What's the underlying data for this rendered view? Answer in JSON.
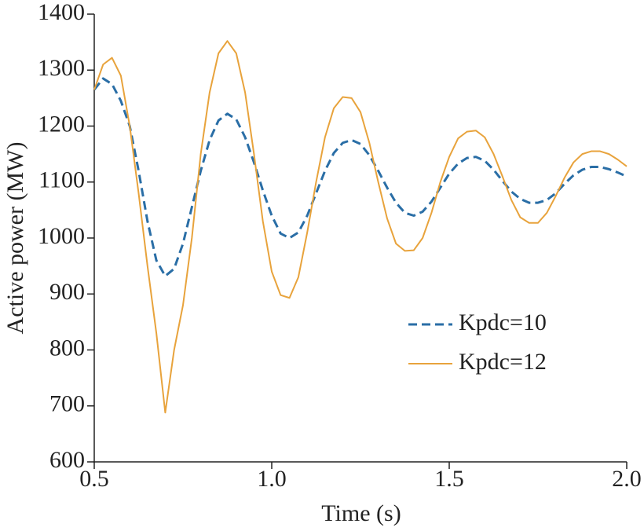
{
  "chart_data": {
    "type": "line",
    "xlabel": "Time (s)",
    "ylabel": "Active power (MW)",
    "x": [
      0.5,
      0.525,
      0.55,
      0.575,
      0.6,
      0.625,
      0.65,
      0.675,
      0.7,
      0.725,
      0.75,
      0.775,
      0.8,
      0.825,
      0.85,
      0.875,
      0.9,
      0.925,
      0.95,
      0.975,
      1.0,
      1.025,
      1.05,
      1.075,
      1.1,
      1.125,
      1.15,
      1.175,
      1.2,
      1.225,
      1.25,
      1.275,
      1.3,
      1.325,
      1.35,
      1.375,
      1.4,
      1.425,
      1.45,
      1.475,
      1.5,
      1.525,
      1.55,
      1.575,
      1.6,
      1.625,
      1.65,
      1.675,
      1.7,
      1.725,
      1.75,
      1.775,
      1.8,
      1.825,
      1.85,
      1.875,
      1.9,
      1.925,
      1.95,
      1.975,
      2.0
    ],
    "series": [
      {
        "name": "Kpdc=10",
        "color": "#2a6ea6",
        "dash": true,
        "values": [
          1265,
          1285,
          1275,
          1245,
          1200,
          1120,
          1030,
          960,
          932,
          945,
          990,
          1055,
          1120,
          1175,
          1210,
          1222,
          1212,
          1180,
          1135,
          1085,
          1040,
          1008,
          1000,
          1010,
          1040,
          1080,
          1120,
          1152,
          1170,
          1175,
          1168,
          1148,
          1120,
          1090,
          1063,
          1045,
          1040,
          1047,
          1065,
          1090,
          1115,
          1133,
          1143,
          1145,
          1138,
          1122,
          1102,
          1083,
          1070,
          1063,
          1063,
          1068,
          1080,
          1097,
          1112,
          1122,
          1127,
          1127,
          1123,
          1117,
          1110
        ]
      },
      {
        "name": "Kpdc=12",
        "color": "#e8a33c",
        "dash": false,
        "values": [
          1265,
          1310,
          1322,
          1290,
          1200,
          1080,
          950,
          830,
          688,
          800,
          880,
          1000,
          1150,
          1260,
          1330,
          1352,
          1330,
          1260,
          1150,
          1030,
          940,
          898,
          893,
          930,
          1010,
          1100,
          1180,
          1232,
          1252,
          1250,
          1225,
          1170,
          1100,
          1035,
          990,
          977,
          978,
          1000,
          1045,
          1100,
          1145,
          1178,
          1190,
          1192,
          1180,
          1150,
          1110,
          1068,
          1037,
          1027,
          1027,
          1045,
          1075,
          1108,
          1135,
          1150,
          1155,
          1155,
          1150,
          1140,
          1128
        ]
      }
    ],
    "xlim": [
      0.5,
      2.0
    ],
    "xticks": [
      0.5,
      {
        "value": 1,
        "label": "1.0"
      },
      1.5,
      {
        "value": 2,
        "label": "2.0"
      }
    ],
    "ylim": [
      600,
      1400
    ],
    "yticks": [
      600,
      700,
      800,
      900,
      1000,
      1100,
      1200,
      1300,
      1400
    ],
    "grid": false,
    "legend": "lower right"
  }
}
